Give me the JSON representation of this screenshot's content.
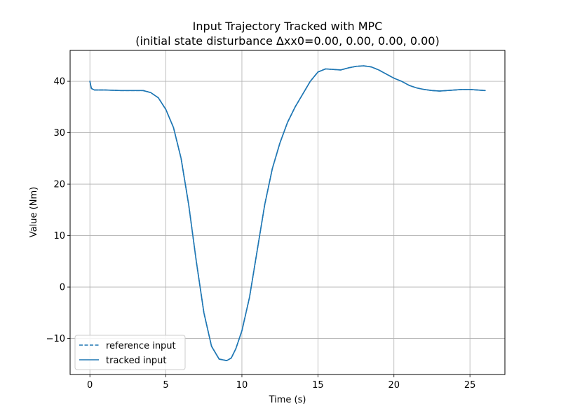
{
  "chart_data": {
    "type": "line",
    "title": "Input Trajectory Tracked with MPC",
    "subtitle": "(initial state disturbance Δxx0=0.00, 0.00, 0.00, 0.00)",
    "xlabel": "Time (s)",
    "ylabel": "Value (Nm)",
    "xlim": [
      -1.3,
      27.3
    ],
    "ylim": [
      -17.0,
      46.0
    ],
    "xticks": [
      0,
      5,
      10,
      15,
      20,
      25
    ],
    "yticks": [
      -10,
      0,
      10,
      20,
      30,
      40
    ],
    "grid": true,
    "legend": "lower-left",
    "series_color": "#1f77b4",
    "series": [
      {
        "name": "reference input",
        "style": "dashed",
        "x": [
          0,
          0.1,
          0.3,
          1,
          2,
          3,
          3.5,
          4,
          4.5,
          5,
          5.5,
          6,
          6.5,
          7,
          7.5,
          8,
          8.5,
          9,
          9.3,
          9.6,
          10,
          10.5,
          11,
          11.5,
          12,
          12.5,
          13,
          13.5,
          14,
          14.5,
          15,
          15.5,
          16,
          16.5,
          17,
          17.5,
          18,
          18.5,
          19,
          19.5,
          20,
          20.5,
          21,
          21.5,
          22,
          22.5,
          23,
          23.5,
          24,
          24.5,
          25,
          25.5,
          26
        ],
        "y": [
          40.0,
          38.6,
          38.3,
          38.3,
          38.2,
          38.2,
          38.2,
          37.8,
          36.8,
          34.5,
          31.0,
          25.0,
          16.0,
          5.0,
          -5.0,
          -11.5,
          -14.0,
          -14.3,
          -13.8,
          -12.0,
          -8.5,
          -2.0,
          7.0,
          16.0,
          23.0,
          28.0,
          32.0,
          35.0,
          37.5,
          40.0,
          41.8,
          42.4,
          42.3,
          42.2,
          42.6,
          42.9,
          43.0,
          42.8,
          42.2,
          41.4,
          40.6,
          40.0,
          39.2,
          38.7,
          38.4,
          38.2,
          38.1,
          38.2,
          38.3,
          38.4,
          38.4,
          38.3,
          38.2
        ]
      },
      {
        "name": "tracked input",
        "style": "solid",
        "x": [
          0,
          0.1,
          0.3,
          1,
          2,
          3,
          3.5,
          4,
          4.5,
          5,
          5.5,
          6,
          6.5,
          7,
          7.5,
          8,
          8.5,
          9,
          9.3,
          9.6,
          10,
          10.5,
          11,
          11.5,
          12,
          12.5,
          13,
          13.5,
          14,
          14.5,
          15,
          15.5,
          16,
          16.5,
          17,
          17.5,
          18,
          18.5,
          19,
          19.5,
          20,
          20.5,
          21,
          21.5,
          22,
          22.5,
          23,
          23.5,
          24,
          24.5,
          25,
          25.5,
          26
        ],
        "y": [
          40.0,
          38.6,
          38.3,
          38.3,
          38.2,
          38.2,
          38.2,
          37.8,
          36.8,
          34.5,
          31.0,
          25.0,
          16.0,
          5.0,
          -5.0,
          -11.5,
          -14.0,
          -14.3,
          -13.8,
          -12.0,
          -8.5,
          -2.0,
          7.0,
          16.0,
          23.0,
          28.0,
          32.0,
          35.0,
          37.5,
          40.0,
          41.8,
          42.4,
          42.3,
          42.2,
          42.6,
          42.9,
          43.0,
          42.8,
          42.2,
          41.4,
          40.6,
          40.0,
          39.2,
          38.7,
          38.4,
          38.2,
          38.1,
          38.2,
          38.3,
          38.4,
          38.4,
          38.3,
          38.2
        ]
      }
    ]
  }
}
